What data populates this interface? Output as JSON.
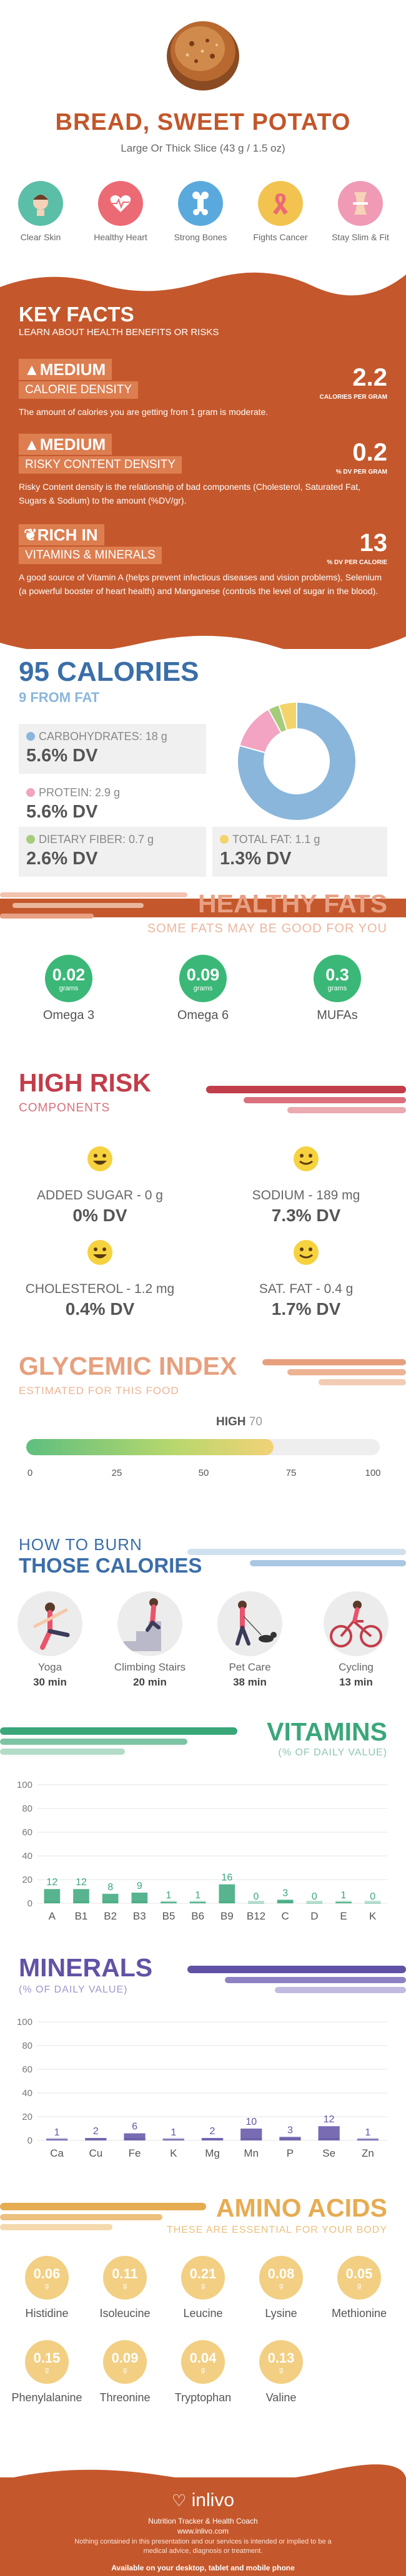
{
  "header": {
    "title": "BREAD, SWEET POTATO",
    "subtitle": "Large Or Thick Slice (43 g / 1.5 oz)",
    "benefits": [
      {
        "label": "Clear Skin",
        "icon": "skin-face-icon",
        "color": "#5bbfa8"
      },
      {
        "label": "Healthy Heart",
        "icon": "heart-icon",
        "color": "#ec6a74"
      },
      {
        "label": "Strong Bones",
        "icon": "bone-icon",
        "color": "#5aa9dd"
      },
      {
        "label": "Fights Cancer",
        "icon": "ribbon-icon",
        "color": "#f3c34f"
      },
      {
        "label": "Stay Slim & Fit",
        "icon": "waist-icon",
        "color": "#f09ab5"
      }
    ]
  },
  "key_facts": {
    "title": "KEY FACTS",
    "subtitle": "LEARN ABOUT HEALTH BENEFITS OR RISKS",
    "blocks": [
      {
        "level": "MEDIUM",
        "label": "CALORIE DENSITY",
        "value": "2.2",
        "unit": "CALORIES PER GRAM",
        "desc": "The amount of calories you are getting from 1 gram is moderate."
      },
      {
        "level": "MEDIUM",
        "label": "RISKY CONTENT DENSITY",
        "value": "0.2",
        "unit": "% DV PER GRAM",
        "desc": "Risky Content density is the relationship of bad components (Cholesterol, Saturated Fat, Sugars & Sodium) to the amount (%DV/gr)."
      },
      {
        "level": "RICH IN",
        "label": "VITAMINS & MINERALS",
        "value": "13",
        "unit": "% DV PER CALORIE",
        "desc": "A good source of Vitamin A (helps prevent infectious diseases and vision problems), Selenium (a powerful booster of heart health) and Manganese (controls the level of sugar in the blood)."
      }
    ]
  },
  "calories": {
    "title": "95 CALORIES",
    "subtitle": "9 FROM FAT",
    "carbs": {
      "label": "CARBOHYDRATES: 18 g",
      "dv": "5.6% DV",
      "color": "#8ab6dc"
    },
    "protein": {
      "label": "PROTEIN: 2.9 g",
      "dv": "5.6% DV",
      "color": "#f2a4c2"
    },
    "fiber": {
      "label": "DIETARY FIBER: 0.7 g",
      "dv": "2.6% DV",
      "color": "#a5cc7a"
    },
    "fat": {
      "label": "TOTAL FAT: 1.1 g",
      "dv": "1.3% DV",
      "color": "#f3d36a"
    }
  },
  "chart_data": [
    {
      "type": "pie",
      "categories": [
        "Carbohydrates",
        "Protein",
        "Dietary Fiber",
        "Total Fat"
      ],
      "values": [
        18,
        2.9,
        0.7,
        1.1
      ],
      "colors": [
        "#8ab6dc",
        "#f2a4c2",
        "#a5cc7a",
        "#f3d36a"
      ]
    },
    {
      "type": "bar",
      "categories": [
        "A",
        "B1",
        "B2",
        "B3",
        "B5",
        "B6",
        "B9",
        "B12",
        "C",
        "D",
        "E",
        "K"
      ],
      "values": [
        12,
        12,
        8,
        9,
        1,
        1,
        16,
        0,
        3,
        0,
        1,
        0
      ],
      "labels": [
        "12",
        "12",
        "8",
        "9",
        "1",
        "1",
        "16",
        "0",
        "3",
        "0",
        "1",
        "0"
      ],
      "ylim": [
        0,
        100
      ],
      "yticks": [
        "0",
        "20",
        "40",
        "60",
        "80",
        "100"
      ],
      "color": "#3aa77a"
    },
    {
      "type": "bar",
      "categories": [
        "Ca",
        "Cu",
        "Fe",
        "K",
        "Mg",
        "Mn",
        "P",
        "Se",
        "Zn"
      ],
      "values": [
        1,
        2,
        6,
        1,
        2,
        10,
        3,
        12,
        1
      ],
      "labels": [
        "1",
        "2",
        "6",
        "1",
        "2",
        "10",
        "3",
        "12",
        "1"
      ],
      "ylim": [
        0,
        100
      ],
      "yticks": [
        "0",
        "20",
        "40",
        "60",
        "80",
        "100"
      ],
      "color": "#6252a6"
    }
  ],
  "healthy_fats": {
    "title": "HEALTHY FATS",
    "subtitle": "SOME FATS MAY BE GOOD FOR YOU",
    "unit": "grams",
    "items": [
      {
        "value": "0.02",
        "name": "Omega 3"
      },
      {
        "value": "0.09",
        "name": "Omega 6"
      },
      {
        "value": "0.3",
        "name": "MUFAs"
      }
    ]
  },
  "high_risk": {
    "title": "HIGH RISK",
    "subtitle": "COMPONENTS",
    "items": [
      {
        "name": "ADDED SUGAR - 0 g",
        "dv": "0% DV"
      },
      {
        "name": "SODIUM - 189 mg",
        "dv": "7.3% DV"
      },
      {
        "name": "CHOLESTEROL - 1.2 mg",
        "dv": "0.4% DV"
      },
      {
        "name": "SAT. FAT - 0.4 g",
        "dv": "1.7% DV"
      }
    ]
  },
  "glycemic": {
    "title": "GLYCEMIC INDEX",
    "subtitle": "ESTIMATED FOR THIS FOOD",
    "level": "HIGH",
    "value": "70",
    "fraction": 0.7,
    "ticks": [
      "0",
      "25",
      "50",
      "75",
      "100"
    ]
  },
  "burn": {
    "title1": "HOW TO BURN",
    "title2": "THOSE CALORIES",
    "activities": [
      {
        "name": "Yoga",
        "time": "30 min"
      },
      {
        "name": "Climbing Stairs",
        "time": "20 min"
      },
      {
        "name": "Pet Care",
        "time": "38 min"
      },
      {
        "name": "Cycling",
        "time": "13 min"
      }
    ]
  },
  "vitamins": {
    "title": "VITAMINS",
    "subtitle": "(% OF DAILY VALUE)"
  },
  "minerals": {
    "title": "MINERALS",
    "subtitle": "(% OF DAILY VALUE)"
  },
  "amino": {
    "title": "AMINO ACIDS",
    "subtitle": "THESE ARE ESSENTIAL FOR YOUR BODY",
    "unit": "g",
    "items": [
      {
        "value": "0.06",
        "name": "Histidine"
      },
      {
        "value": "0.11",
        "name": "Isoleucine"
      },
      {
        "value": "0.21",
        "name": "Leucine"
      },
      {
        "value": "0.08",
        "name": "Lysine"
      },
      {
        "value": "0.05",
        "name": "Methionine"
      },
      {
        "value": "0.15",
        "name": "Phenylalanine"
      },
      {
        "value": "0.09",
        "name": "Threonine"
      },
      {
        "value": "0.04",
        "name": "Tryptophan"
      },
      {
        "value": "0.13",
        "name": "Valine"
      }
    ]
  },
  "footer": {
    "brand": "inlivo",
    "tagline": "Nutrition Tracker & Health Coach",
    "url": "www.inlivo.com",
    "disclaimer": "Nothing contained in this presentation and our services is intended or implied to be a medical advice, diagnosis or treatment.",
    "available": "Available on your desktop, tablet and mobile phone"
  }
}
